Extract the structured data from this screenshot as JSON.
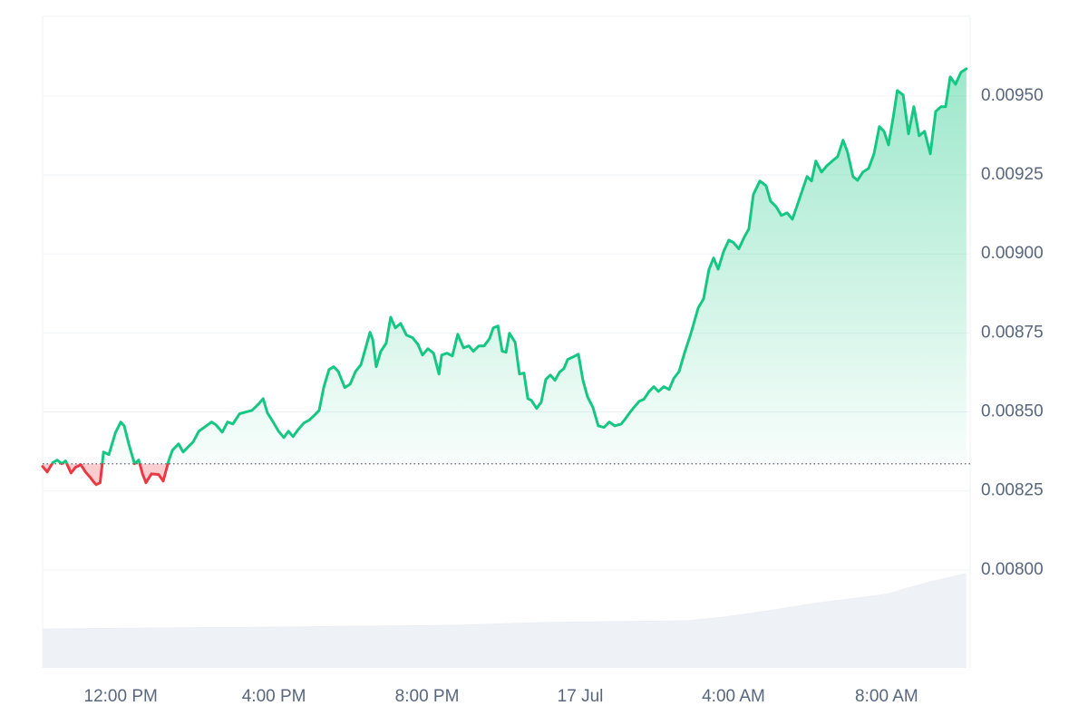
{
  "chart_data": {
    "type": "line",
    "x": [
      -2.04,
      -1.92,
      -1.78,
      -1.66,
      -1.54,
      -1.44,
      -1.3,
      -1.18,
      -1.04,
      -0.92,
      -0.8,
      -0.71,
      -0.64,
      -0.54,
      -0.45,
      -0.31,
      -0.14,
      0,
      0.09,
      0.21,
      0.36,
      0.47,
      0.57,
      0.66,
      0.8,
      0.99,
      1.11,
      1.25,
      1.35,
      1.51,
      1.63,
      1.75,
      1.89,
      2.04,
      2.18,
      2.37,
      2.49,
      2.65,
      2.79,
      2.93,
      3.1,
      3.24,
      3.43,
      3.6,
      3.72,
      3.83,
      3.98,
      4.12,
      4.26,
      4.38,
      4.5,
      4.64,
      4.78,
      4.92,
      5.07,
      5.18,
      5.3,
      5.44,
      5.56,
      5.68,
      5.85,
      5.99,
      6.13,
      6.27,
      6.41,
      6.51,
      6.58,
      6.67,
      6.79,
      6.93,
      7.05,
      7.17,
      7.31,
      7.46,
      7.62,
      7.76,
      7.88,
      8.02,
      8.17,
      8.31,
      8.38,
      8.52,
      8.66,
      8.8,
      8.95,
      9.09,
      9.21,
      9.35,
      9.49,
      9.63,
      9.73,
      9.85,
      9.96,
      10.06,
      10.15,
      10.3,
      10.41,
      10.53,
      10.63,
      10.72,
      10.86,
      10.98,
      11.1,
      11.22,
      11.34,
      11.46,
      11.57,
      11.67,
      11.81,
      11.95,
      12.07,
      12.19,
      12.33,
      12.47,
      12.62,
      12.76,
      12.9,
      13.07,
      13.18,
      13.3,
      13.42,
      13.54,
      13.66,
      13.8,
      13.92,
      14.04,
      14.18,
      14.32,
      14.44,
      14.58,
      14.72,
      14.89,
      15.08,
      15.22,
      15.36,
      15.48,
      15.6,
      15.74,
      15.88,
      16.0,
      16.14,
      16.28,
      16.4,
      16.52,
      16.69,
      16.85,
      16.97,
      17.11,
      17.25,
      17.4,
      17.54,
      17.68,
      17.8,
      17.92,
      18.04,
      18.15,
      18.3,
      18.44,
      18.58,
      18.72,
      18.86,
      18.98,
      19.12,
      19.24,
      19.38,
      19.53,
      19.67,
      19.81,
      19.93,
      20.05,
      20.17,
      20.28,
      20.43,
      20.57,
      20.71,
      20.85,
      20.99,
      21.14,
      21.28,
      21.42,
      21.54,
      21.66,
      21.8,
      21.94,
      22.08
    ],
    "values": [
      0.0083274,
      0.00831,
      0.008339,
      0.008348,
      0.008336,
      0.008345,
      0.008307,
      0.008325,
      0.008333,
      0.00831,
      0.008293,
      0.008279,
      0.00827,
      0.008276,
      0.008373,
      0.008365,
      0.008434,
      0.008468,
      0.008456,
      0.008399,
      0.008336,
      0.008348,
      0.008304,
      0.008276,
      0.008304,
      0.008302,
      0.008281,
      0.008345,
      0.008379,
      0.008399,
      0.008373,
      0.008388,
      0.008405,
      0.008439,
      0.008451,
      0.008468,
      0.008459,
      0.008436,
      0.008468,
      0.008462,
      0.008494,
      0.008499,
      0.008505,
      0.008525,
      0.008542,
      0.008497,
      0.008468,
      0.008439,
      0.008419,
      0.008439,
      0.008422,
      0.008445,
      0.008465,
      0.008474,
      0.008491,
      0.008505,
      0.008577,
      0.008634,
      0.008643,
      0.008628,
      0.008577,
      0.008588,
      0.008628,
      0.008649,
      0.008709,
      0.008752,
      0.008729,
      0.008643,
      0.008692,
      0.008717,
      0.0088,
      0.008766,
      0.00878,
      0.008743,
      0.008735,
      0.008714,
      0.00868,
      0.0087,
      0.008686,
      0.00862,
      0.00868,
      0.008686,
      0.008677,
      0.008746,
      0.008703,
      0.008709,
      0.008692,
      0.008709,
      0.008709,
      0.008732,
      0.008766,
      0.008772,
      0.008692,
      0.008689,
      0.008749,
      0.00872,
      0.00862,
      0.008623,
      0.008542,
      0.008537,
      0.008511,
      0.008531,
      0.008603,
      0.008617,
      0.0086,
      0.008626,
      0.008637,
      0.008666,
      0.008674,
      0.008683,
      0.0086,
      0.008548,
      0.008514,
      0.008456,
      0.008451,
      0.008468,
      0.008456,
      0.008462,
      0.008479,
      0.008499,
      0.008517,
      0.008534,
      0.00854,
      0.008565,
      0.00858,
      0.008565,
      0.00858,
      0.008571,
      0.008606,
      0.008628,
      0.008686,
      0.008749,
      0.008829,
      0.008858,
      0.00895,
      0.008987,
      0.008952,
      0.009007,
      0.009044,
      0.009036,
      0.009016,
      0.009053,
      0.009079,
      0.009188,
      0.009231,
      0.009216,
      0.009167,
      0.00915,
      0.009122,
      0.00913,
      0.00911,
      0.009159,
      0.009202,
      0.009245,
      0.009231,
      0.009294,
      0.009259,
      0.009279,
      0.009294,
      0.009308,
      0.00936,
      0.009322,
      0.009245,
      0.009233,
      0.009259,
      0.009271,
      0.009317,
      0.009403,
      0.009388,
      0.009345,
      0.009431,
      0.009517,
      0.009503,
      0.00938,
      0.009466,
      0.009374,
      0.009388,
      0.009317,
      0.009451,
      0.009466,
      0.009466,
      0.00956,
      0.009537,
      0.009575,
      0.009586
    ],
    "baseline": 0.008336,
    "up_color": "#16c784",
    "down_color": "#ea3943",
    "volume": {
      "x": [
        -2.04,
        0.4,
        3.95,
        6.32,
        8.69,
        11.05,
        14.84,
        15.79,
        16.97,
        18.15,
        19.34,
        20.05,
        20.52,
        21.23,
        22.08
      ],
      "values": [
        42,
        43,
        44,
        45,
        46,
        49,
        51,
        55,
        62,
        70,
        76,
        80,
        86,
        94,
        102
      ],
      "color": "#eef1f6"
    },
    "xlim": [
      -2.04,
      22.18
    ],
    "xticks": [
      {
        "value": 0,
        "label": "12:00 PM"
      },
      {
        "value": 4,
        "label": "4:00 PM"
      },
      {
        "value": 8,
        "label": "8:00 PM"
      },
      {
        "value": 12,
        "label": "17 Jul"
      },
      {
        "value": 16,
        "label": "4:00 AM"
      },
      {
        "value": 20,
        "label": "8:00 AM"
      }
    ],
    "ylim": [
      0.00769,
      0.009752
    ],
    "yticks": [
      {
        "value": 0.0095,
        "label": "0.00950"
      },
      {
        "value": 0.00925,
        "label": "0.00925"
      },
      {
        "value": 0.009,
        "label": "0.00900"
      },
      {
        "value": 0.00875,
        "label": "0.00875"
      },
      {
        "value": 0.0085,
        "label": "0.00850"
      },
      {
        "value": 0.00825,
        "label": "0.00825"
      },
      {
        "value": 0.008,
        "label": "0.00800"
      }
    ],
    "grid": true
  }
}
